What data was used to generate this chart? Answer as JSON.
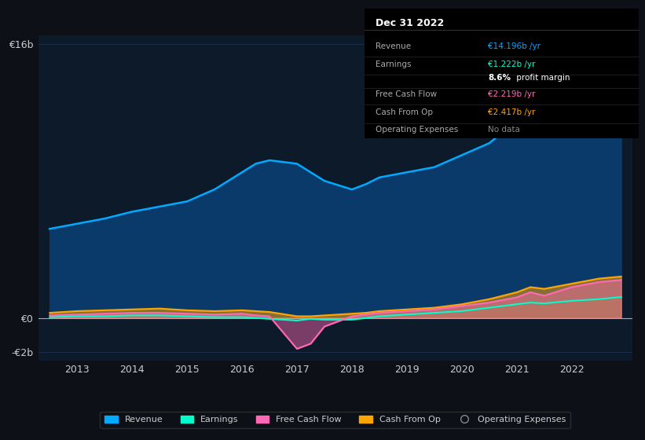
{
  "bg_color": "#0d1117",
  "plot_bg_color": "#0d1a2a",
  "grid_color": "#1e3050",
  "text_color": "#cccccc",
  "title_color": "#ffffff",
  "years": [
    2012.5,
    2013.0,
    2013.5,
    2014.0,
    2014.5,
    2015.0,
    2015.5,
    2016.0,
    2016.25,
    2016.5,
    2017.0,
    2017.25,
    2017.5,
    2018.0,
    2018.25,
    2018.5,
    2019.0,
    2019.5,
    2020.0,
    2020.5,
    2021.0,
    2021.25,
    2021.5,
    2022.0,
    2022.5,
    2022.9
  ],
  "revenue": [
    5.2,
    5.5,
    5.8,
    6.2,
    6.5,
    6.8,
    7.5,
    8.5,
    9.0,
    9.2,
    9.0,
    8.5,
    8.0,
    7.5,
    7.8,
    8.2,
    8.5,
    8.8,
    9.5,
    10.2,
    11.5,
    11.8,
    11.2,
    12.5,
    14.0,
    14.196
  ],
  "earnings": [
    0.05,
    0.1,
    0.1,
    0.15,
    0.15,
    0.1,
    0.05,
    0.05,
    0.0,
    -0.05,
    -0.15,
    -0.05,
    -0.1,
    -0.1,
    0.0,
    0.1,
    0.2,
    0.3,
    0.4,
    0.6,
    0.8,
    0.9,
    0.85,
    1.0,
    1.1,
    1.222
  ],
  "free_cash_flow": [
    0.15,
    0.2,
    0.25,
    0.3,
    0.3,
    0.25,
    0.2,
    0.25,
    0.15,
    0.1,
    -1.8,
    -1.5,
    -0.5,
    0.1,
    0.2,
    0.3,
    0.4,
    0.5,
    0.7,
    0.9,
    1.2,
    1.5,
    1.3,
    1.8,
    2.1,
    2.219
  ],
  "cash_from_op": [
    0.3,
    0.4,
    0.45,
    0.5,
    0.55,
    0.45,
    0.4,
    0.45,
    0.4,
    0.35,
    0.1,
    0.1,
    0.15,
    0.25,
    0.3,
    0.4,
    0.5,
    0.6,
    0.8,
    1.1,
    1.5,
    1.8,
    1.7,
    2.0,
    2.3,
    2.417
  ],
  "revenue_color": "#00aaff",
  "earnings_color": "#00ffcc",
  "free_cash_flow_color": "#ff69b4",
  "cash_from_op_color": "#ffa500",
  "op_expenses_color": "#888888",
  "revenue_fill": "#0a3a6a",
  "earnings_fill": "#005540",
  "free_cash_flow_fill": "#6a1a40",
  "ylim_min": -2.5,
  "ylim_max": 16.5,
  "xtick_years": [
    2013,
    2014,
    2015,
    2016,
    2017,
    2018,
    2019,
    2020,
    2021,
    2022
  ],
  "xlim_min": 2012.3,
  "xlim_max": 2023.1,
  "info_box": {
    "title": "Dec 31 2022",
    "rows": [
      {
        "label": "Revenue",
        "value": "€14.196b /yr",
        "value_color": "#00aaff"
      },
      {
        "label": "Earnings",
        "value": "€1.222b /yr",
        "value_color": "#00ffcc"
      },
      {
        "label": "",
        "value": "8.6% profit margin",
        "value_color": "#ffffff"
      },
      {
        "label": "Free Cash Flow",
        "value": "€2.219b /yr",
        "value_color": "#ff69b4"
      },
      {
        "label": "Cash From Op",
        "value": "€2.417b /yr",
        "value_color": "#ffa500"
      },
      {
        "label": "Operating Expenses",
        "value": "No data",
        "value_color": "#888888"
      }
    ]
  },
  "legend_items": [
    {
      "label": "Revenue",
      "color": "#00aaff",
      "filled": true
    },
    {
      "label": "Earnings",
      "color": "#00ffcc",
      "filled": true
    },
    {
      "label": "Free Cash Flow",
      "color": "#ff69b4",
      "filled": true
    },
    {
      "label": "Cash From Op",
      "color": "#ffa500",
      "filled": true
    },
    {
      "label": "Operating Expenses",
      "color": "#888888",
      "filled": false
    }
  ]
}
